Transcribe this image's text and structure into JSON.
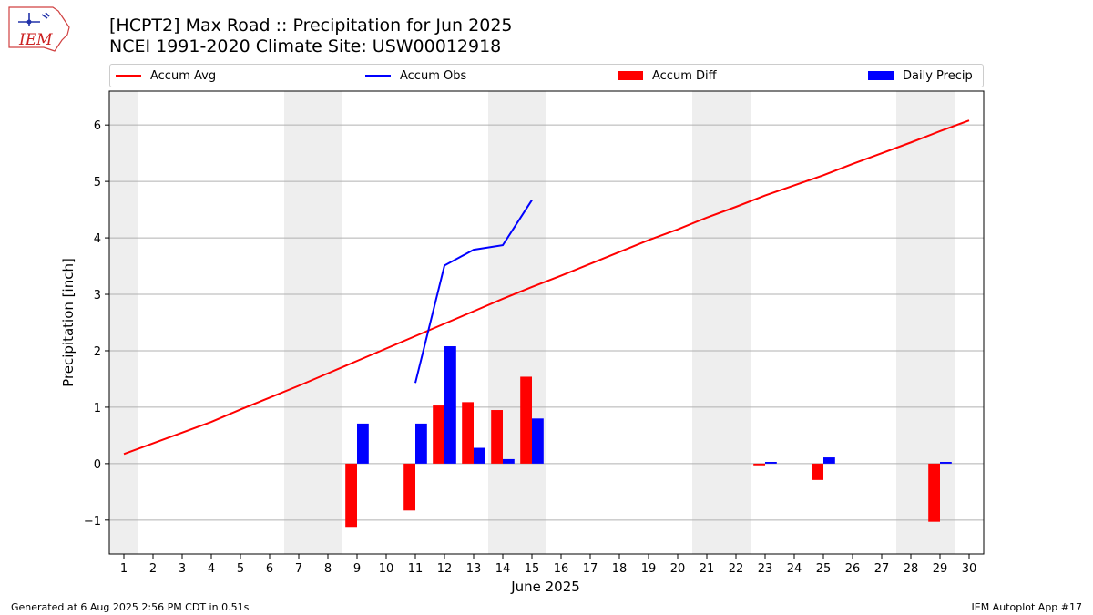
{
  "header": {
    "logo_text": "IEM",
    "title": "[HCPT2] Max Road :: Precipitation for Jun 2025",
    "subtitle": "NCEI 1991-2020 Climate Site: USW00012918"
  },
  "footer": {
    "left": "Generated at 6 Aug 2025 2:56 PM CDT in 0.51s",
    "right": "IEM Autoplot App #17"
  },
  "colors": {
    "avg": "#ff0000",
    "obs": "#0000ff",
    "diff": "#ff0000",
    "daily": "#0000ff",
    "weekend_shade": "#eeeeee",
    "grid": "#b0b0b0"
  },
  "chart_data": {
    "type": "bar",
    "xlabel": "June 2025",
    "ylabel": "Precipitation [inch]",
    "xlim": [
      0.5,
      30.5
    ],
    "ylim": [
      -1.6,
      6.6
    ],
    "x_ticks": [
      1,
      2,
      3,
      4,
      5,
      6,
      7,
      8,
      9,
      10,
      11,
      12,
      13,
      14,
      15,
      16,
      17,
      18,
      19,
      20,
      21,
      22,
      23,
      24,
      25,
      26,
      27,
      28,
      29,
      30
    ],
    "y_ticks": [
      -1,
      0,
      1,
      2,
      3,
      4,
      5,
      6
    ],
    "y_tick_labels": [
      "−1",
      "0",
      "1",
      "2",
      "3",
      "4",
      "5",
      "6"
    ],
    "grid": "horizontal",
    "legend_position": "top",
    "shaded_days": [
      [
        1,
        1
      ],
      [
        7,
        8
      ],
      [
        14,
        15
      ],
      [
        21,
        22
      ],
      [
        28,
        29
      ]
    ],
    "legend": [
      "Accum Avg",
      "Accum Obs",
      "Accum Diff",
      "Daily Precip"
    ],
    "accum_avg": {
      "name": "Accum Avg",
      "type": "line",
      "x": [
        1,
        2,
        3,
        4,
        5,
        6,
        7,
        8,
        9,
        10,
        11,
        12,
        13,
        14,
        15,
        16,
        17,
        18,
        19,
        20,
        21,
        22,
        23,
        24,
        25,
        26,
        27,
        28,
        29,
        30
      ],
      "values": [
        0.17,
        0.36,
        0.55,
        0.74,
        0.96,
        1.17,
        1.38,
        1.6,
        1.82,
        2.04,
        2.26,
        2.48,
        2.7,
        2.92,
        3.13,
        3.33,
        3.54,
        3.75,
        3.96,
        4.15,
        4.36,
        4.55,
        4.75,
        4.93,
        5.11,
        5.31,
        5.5,
        5.69,
        5.89,
        6.08
      ]
    },
    "accum_obs": {
      "name": "Accum Obs",
      "type": "line",
      "x": [
        11,
        12,
        13,
        14,
        15
      ],
      "values": [
        1.43,
        3.51,
        3.79,
        3.87,
        4.67
      ]
    },
    "accum_diff": {
      "name": "Accum Diff",
      "type": "bar",
      "x": [
        9,
        11,
        12,
        13,
        14,
        15,
        23,
        25,
        29
      ],
      "values": [
        -1.12,
        -0.83,
        1.03,
        1.09,
        0.95,
        1.54,
        -0.03,
        -0.29,
        -1.03
      ]
    },
    "daily_precip": {
      "name": "Daily Precip",
      "type": "bar",
      "x": [
        9,
        11,
        12,
        13,
        14,
        15,
        23,
        25,
        29
      ],
      "values": [
        0.71,
        0.71,
        2.08,
        0.28,
        0.08,
        0.8,
        0.03,
        0.11,
        0.03
      ]
    }
  }
}
